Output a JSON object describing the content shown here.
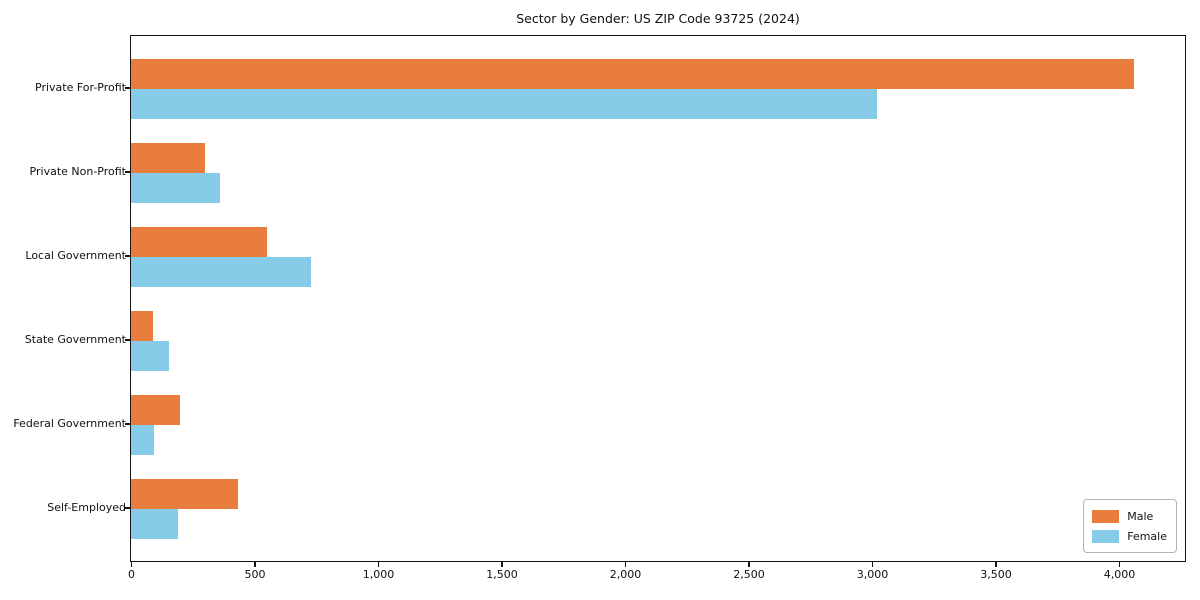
{
  "title": "Sector by Gender: US ZIP Code 93725 (2024)",
  "colors": {
    "male": "#e87d3e",
    "female": "#86cbe8",
    "axis": "#141414",
    "text": "#111111",
    "legend_border": "#b4b4b4",
    "background": "#ffffff"
  },
  "legend": {
    "position": "lower right",
    "items": [
      {
        "label": "Male",
        "color": "#e87d3e"
      },
      {
        "label": "Female",
        "color": "#86cbe8"
      }
    ]
  },
  "chart_data": {
    "type": "bar",
    "orientation": "horizontal",
    "title": "Sector by Gender: US ZIP Code 93725 (2024)",
    "xlabel": "",
    "ylabel": "",
    "categories": [
      "Private For-Profit",
      "Private Non-Profit",
      "Local Government",
      "State Government",
      "Federal Government",
      "Self-Employed"
    ],
    "series": [
      {
        "name": "Male",
        "color": "#e87d3e",
        "values": [
          4060,
          300,
          550,
          90,
          200,
          435
        ]
      },
      {
        "name": "Female",
        "color": "#86cbe8",
        "values": [
          3020,
          360,
          730,
          155,
          95,
          190
        ]
      }
    ],
    "xlim": [
      0,
      4267
    ],
    "xticks": [
      0,
      500,
      1000,
      1500,
      2000,
      2500,
      3000,
      3500,
      4000
    ],
    "xtick_labels": [
      "0",
      "500",
      "1,000",
      "1,500",
      "2,000",
      "2,500",
      "3,000",
      "3,500",
      "4,000"
    ],
    "grid": false,
    "legend_position": "lower right"
  }
}
